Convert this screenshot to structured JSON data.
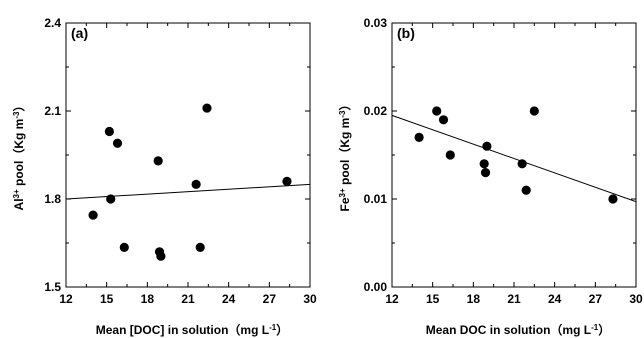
{
  "chart_data": [
    {
      "type": "scatter",
      "panel_label": "(a)",
      "xlabel": "Mean [DOC] in solution（mg L⁻¹）",
      "ylabel": "Al³⁺ pool（Kg m⁻³）",
      "xlim": [
        12,
        30
      ],
      "ylim": [
        1.5,
        2.4
      ],
      "xticks": [
        "12",
        "15",
        "18",
        "21",
        "24",
        "27",
        "30"
      ],
      "yticks": [
        "1.5",
        "1.8",
        "2.1",
        "2.4"
      ],
      "x": [
        14.0,
        15.2,
        15.3,
        15.8,
        16.3,
        18.8,
        18.9,
        19.0,
        21.6,
        21.9,
        22.4,
        28.3
      ],
      "y": [
        1.745,
        2.03,
        1.8,
        1.99,
        1.635,
        1.93,
        1.62,
        1.605,
        1.85,
        1.635,
        2.11,
        1.86
      ],
      "trendline": {
        "x": [
          12,
          30
        ],
        "y": [
          1.8,
          1.85
        ]
      },
      "grid": false
    },
    {
      "type": "scatter",
      "panel_label": "(b)",
      "xlabel": "Mean DOC in solution（mg L⁻¹）",
      "ylabel": "Fe³⁺ pool（Kg m⁻³）",
      "xlim": [
        12,
        30
      ],
      "ylim": [
        0.0,
        0.03
      ],
      "xticks": [
        "12",
        "15",
        "18",
        "21",
        "24",
        "27",
        "30"
      ],
      "yticks": [
        "0.00",
        "0.01",
        "0.02",
        "0.03"
      ],
      "x": [
        14.0,
        15.3,
        15.8,
        16.3,
        18.8,
        18.9,
        19.0,
        21.6,
        21.9,
        22.5,
        28.3
      ],
      "y": [
        0.017,
        0.02,
        0.019,
        0.015,
        0.014,
        0.013,
        0.016,
        0.014,
        0.011,
        0.02,
        0.01
      ],
      "trendline": {
        "x": [
          12,
          30
        ],
        "y": [
          0.0195,
          0.0097
        ]
      },
      "grid": false
    }
  ]
}
